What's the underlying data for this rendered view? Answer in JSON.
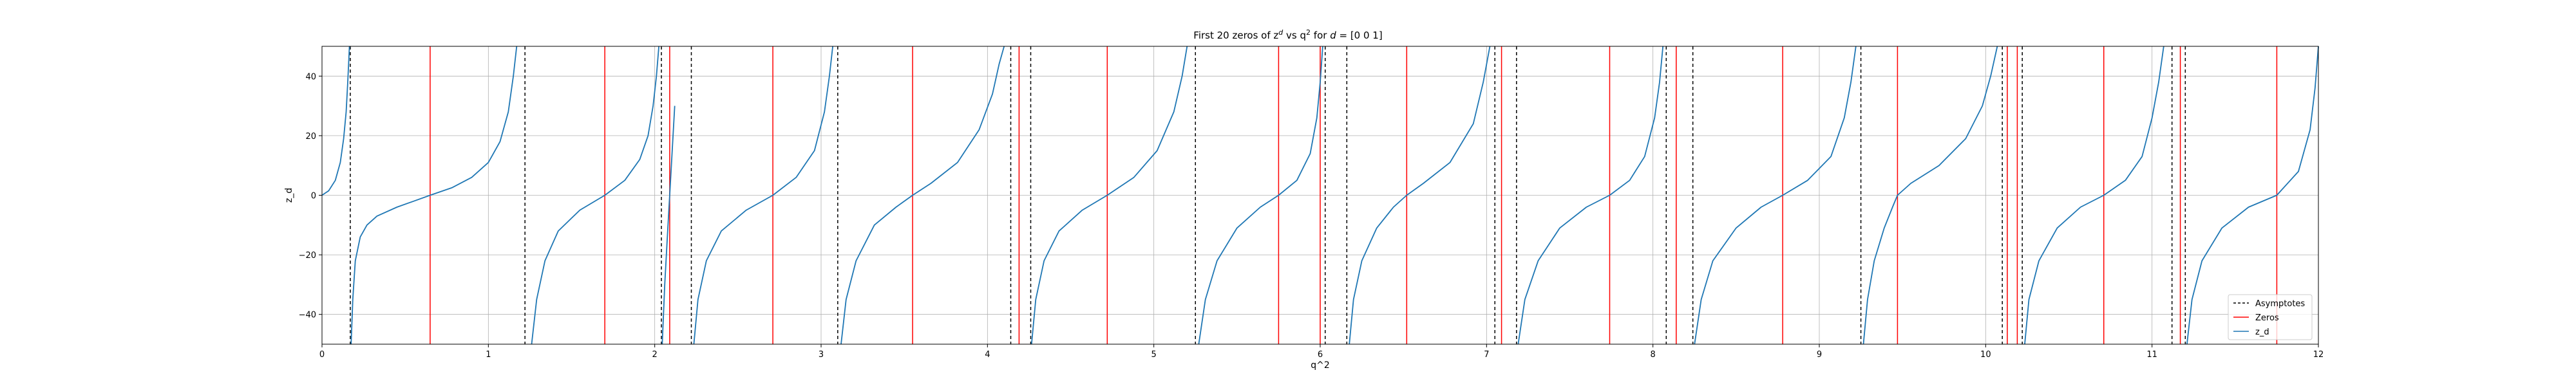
{
  "chart_data": {
    "type": "line",
    "title_parts": [
      "First 20 zeros of z",
      "d",
      " vs q",
      "2",
      " for ",
      "d",
      " = [0 0 1]"
    ],
    "xlabel": "q^2",
    "ylabel": "z_d",
    "xlim": [
      0,
      12
    ],
    "ylim": [
      -50,
      50
    ],
    "xticks": [
      0,
      1,
      2,
      3,
      4,
      5,
      6,
      7,
      8,
      9,
      10,
      11,
      12
    ],
    "yticks": [
      -40,
      -20,
      0,
      20,
      40
    ],
    "ytick_labels": [
      "−40",
      "−20",
      "0",
      "20",
      "40"
    ],
    "grid": true,
    "legend_position": "bottom-right",
    "legend": [
      {
        "label": "Asymptotes",
        "style": "dashed",
        "color": "#000000"
      },
      {
        "label": "Zeros",
        "style": "solid",
        "color": "#ff0000"
      },
      {
        "label": "z_d",
        "style": "solid",
        "color": "#1f77b4"
      }
    ],
    "asymptotes": [
      0.17,
      1.22,
      2.04,
      2.22,
      3.1,
      4.14,
      4.26,
      5.25,
      6.03,
      6.16,
      7.05,
      7.18,
      8.08,
      8.24,
      9.25,
      10.1,
      10.22,
      11.12,
      11.2
    ],
    "zeros": [
      0.65,
      1.7,
      2.09,
      2.71,
      3.55,
      4.19,
      4.72,
      5.75,
      6.0,
      6.52,
      7.09,
      7.74,
      8.14,
      8.78,
      9.47,
      10.13,
      10.19,
      10.71,
      11.17,
      11.75
    ],
    "branches": [
      {
        "x": [
          0.0,
          0.04,
          0.08,
          0.11,
          0.13,
          0.145,
          0.155,
          0.165
        ],
        "y": [
          0,
          1.5,
          5,
          11,
          19,
          28,
          38,
          50
        ]
      },
      {
        "x": [
          0.175,
          0.185,
          0.2,
          0.23,
          0.27,
          0.33,
          0.45,
          0.55,
          0.65,
          0.78,
          0.9,
          1.0,
          1.07,
          1.12,
          1.15,
          1.17
        ],
        "y": [
          -50,
          -35,
          -22,
          -14,
          -10,
          -7,
          -4,
          -2,
          0,
          2.5,
          6,
          11,
          18,
          28,
          40,
          50
        ]
      },
      {
        "x": [
          1.26,
          1.29,
          1.34,
          1.42,
          1.55,
          1.7,
          1.82,
          1.91,
          1.96,
          1.99,
          2.01,
          2.025
        ],
        "y": [
          -50,
          -35,
          -22,
          -12,
          -5,
          0,
          5,
          12,
          20,
          30,
          40,
          50
        ]
      },
      {
        "x": [
          2.045,
          2.06,
          2.075,
          2.09,
          2.105,
          2.12
        ],
        "y": [
          -50,
          -30,
          -15,
          0,
          15,
          30
        ]
      },
      {
        "x": [
          2.235,
          2.26,
          2.31,
          2.4,
          2.55,
          2.71,
          2.85,
          2.96,
          3.02,
          3.05,
          3.07
        ],
        "y": [
          -50,
          -35,
          -22,
          -12,
          -5,
          0,
          6,
          15,
          28,
          40,
          50
        ]
      },
      {
        "x": [
          3.12,
          3.15,
          3.21,
          3.32,
          3.45,
          3.55,
          3.66,
          3.82,
          3.95,
          4.03,
          4.07,
          4.1
        ],
        "y": [
          -50,
          -35,
          -22,
          -10,
          -4,
          0,
          4,
          11,
          22,
          34,
          44,
          50
        ]
      },
      {
        "x": [
          4.265,
          4.29,
          4.34,
          4.43,
          4.57,
          4.72,
          4.88,
          5.02,
          5.12,
          5.17,
          5.2
        ],
        "y": [
          -50,
          -35,
          -22,
          -12,
          -5,
          0,
          6,
          15,
          28,
          40,
          50
        ]
      },
      {
        "x": [
          5.27,
          5.31,
          5.38,
          5.5,
          5.64,
          5.75,
          5.86,
          5.94,
          5.98,
          6.0,
          6.015
        ],
        "y": [
          -50,
          -35,
          -22,
          -11,
          -4,
          0,
          5,
          14,
          26,
          38,
          50
        ]
      },
      {
        "x": [
          6.175,
          6.2,
          6.25,
          6.34,
          6.44,
          6.52,
          6.62,
          6.78,
          6.92,
          6.98,
          7.02
        ],
        "y": [
          -50,
          -35,
          -22,
          -11,
          -4,
          0,
          4,
          11,
          24,
          38,
          50
        ]
      },
      {
        "x": [
          7.19,
          7.23,
          7.31,
          7.44,
          7.6,
          7.74,
          7.86,
          7.95,
          8.01,
          8.04,
          8.06
        ],
        "y": [
          -50,
          -35,
          -22,
          -11,
          -4,
          0,
          5,
          13,
          26,
          38,
          50
        ]
      },
      {
        "x": [
          8.25,
          8.29,
          8.36,
          8.5,
          8.65,
          8.78,
          8.93,
          9.07,
          9.15,
          9.19,
          9.22
        ],
        "y": [
          -50,
          -35,
          -22,
          -11,
          -4,
          0,
          5,
          13,
          26,
          38,
          50
        ]
      },
      {
        "x": [
          9.265,
          9.29,
          9.33,
          9.39,
          9.44,
          9.47,
          9.55,
          9.72,
          9.88,
          9.98,
          10.03,
          10.07
        ],
        "y": [
          -50,
          -35,
          -22,
          -11,
          -4,
          0,
          4,
          10,
          19,
          30,
          40,
          50
        ]
      },
      {
        "x": [
          10.235,
          10.26,
          10.32,
          10.43,
          10.57,
          10.71,
          10.84,
          10.94,
          11.0,
          11.04,
          11.07
        ],
        "y": [
          -50,
          -35,
          -22,
          -11,
          -4,
          0,
          5,
          13,
          26,
          38,
          50
        ]
      },
      {
        "x": [
          11.21,
          11.24,
          11.3,
          11.42,
          11.58,
          11.75,
          11.88,
          11.95,
          11.98,
          12.0
        ],
        "y": [
          -50,
          -35,
          -22,
          -11,
          -4,
          0,
          8,
          22,
          36,
          50
        ]
      }
    ]
  }
}
